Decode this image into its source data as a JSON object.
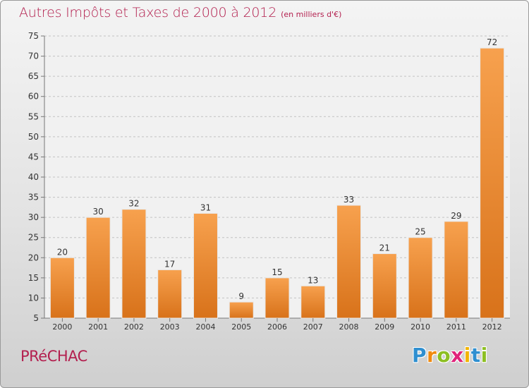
{
  "header": {
    "title": "Autres Impôts et Taxes de 2000 à 2012",
    "unit": "(en milliers d'€)"
  },
  "footer": {
    "commune": "PRéCHAC",
    "logo_letters": [
      "P",
      "r",
      "o",
      "x",
      "i",
      "t",
      "i"
    ],
    "logo_colors": [
      "#2f8fd0",
      "#f08a10",
      "#8dbf23",
      "#e0237a",
      "#f2b400",
      "#2f8fd0",
      "#8dbf23"
    ]
  },
  "chart_data": {
    "type": "bar",
    "title": "Autres Impôts et Taxes de 2000 à 2012",
    "subtitle": "(en milliers d'€)",
    "categories": [
      "2000",
      "2001",
      "2002",
      "2003",
      "2004",
      "2005",
      "2006",
      "2007",
      "2008",
      "2009",
      "2010",
      "2011",
      "2012"
    ],
    "values": [
      20,
      30,
      32,
      17,
      31,
      9,
      15,
      13,
      33,
      21,
      25,
      29,
      72
    ],
    "ylim": [
      5,
      75
    ],
    "yticks": [
      5,
      10,
      15,
      20,
      25,
      30,
      35,
      40,
      45,
      50,
      55,
      60,
      65,
      70,
      75
    ],
    "grid": "horizontal-dashed",
    "colors": {
      "bar_top": "#f7a14e",
      "bar_bottom": "#d8721a",
      "text": "#333333",
      "grid": "#c2c2c2"
    }
  }
}
